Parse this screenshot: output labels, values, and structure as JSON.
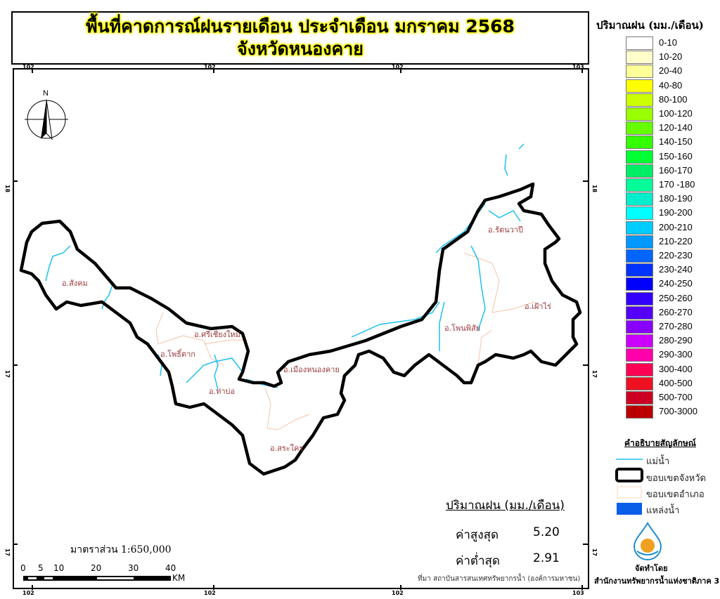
{
  "title": {
    "line1": "พื้นที่คาดการณ์ฝนรายเดือน ประจำเดือน มกราคม 2568",
    "line2": "จังหวัดหนองคาย"
  },
  "grid_labels": {
    "top": [
      "102",
      "102",
      "102",
      "103"
    ],
    "bottom": [
      "102",
      "102",
      "102",
      "103"
    ],
    "left": [
      "18",
      "17",
      "17"
    ],
    "right": [
      "18",
      "17",
      "17"
    ]
  },
  "north_arrow": {
    "label": "N"
  },
  "districts": [
    "อ.สังคม",
    "อ.ศรีเชียงใหม่",
    "อ.โพธิ์ตาก",
    "อ.ท่าบ่อ",
    "อ.เมืองหนองคาย",
    "อ.สระใคร",
    "อ.โพนพิสัย",
    "อ.รัตนวาปี",
    "อ.เฝ้าไร่"
  ],
  "rain_legend": {
    "title": "ปริมาณฝน (มม./เดือน)",
    "classes": [
      {
        "label": "0-10",
        "color": "#ffffff"
      },
      {
        "label": "10-20",
        "color": "#ffffcc"
      },
      {
        "label": "20-40",
        "color": "#ffff99"
      },
      {
        "label": "40-80",
        "color": "#ffff00"
      },
      {
        "label": "80-100",
        "color": "#ccff00"
      },
      {
        "label": "100-120",
        "color": "#99ff00"
      },
      {
        "label": "120-140",
        "color": "#66ff00"
      },
      {
        "label": "140-150",
        "color": "#33ff00"
      },
      {
        "label": "150-160",
        "color": "#00ff33"
      },
      {
        "label": "160-170",
        "color": "#00ee66"
      },
      {
        "label": "170 -180",
        "color": "#00ff99"
      },
      {
        "label": "180-190",
        "color": "#00eecc"
      },
      {
        "label": "190-200",
        "color": "#00ffff"
      },
      {
        "label": "200-210",
        "color": "#00ccff"
      },
      {
        "label": "210-220",
        "color": "#0099ff"
      },
      {
        "label": "220-230",
        "color": "#0066ff"
      },
      {
        "label": "230-240",
        "color": "#0033ff"
      },
      {
        "label": "240-250",
        "color": "#0000ff"
      },
      {
        "label": "250-260",
        "color": "#3300ff"
      },
      {
        "label": "260-270",
        "color": "#5500ff"
      },
      {
        "label": "270-280",
        "color": "#8800ff"
      },
      {
        "label": "280-290",
        "color": "#cc00ff"
      },
      {
        "label": "290-300",
        "color": "#ff00aa"
      },
      {
        "label": "300-400",
        "color": "#ff0055"
      },
      {
        "label": "400-500",
        "color": "#ee1122"
      },
      {
        "label": "500-700",
        "color": "#cc0022"
      },
      {
        "label": "700-3000",
        "color": "#bb0000"
      }
    ]
  },
  "symbol_legend": {
    "title": "คำอธิบายสัญลักษณ์",
    "river": "แม่น้ำ",
    "province_boundary": "ขอบเขตจังหวัด",
    "district_boundary": "ขอบเขตอำเภอ",
    "water_body": "แหล่งน้ำ"
  },
  "producer": {
    "label": "จัดทำโดย",
    "name": "สำนักงานทรัพยากรน้ำแห่งชาติภาค 3"
  },
  "stats": {
    "title": "ปริมาณฝน (มม./เดือน)",
    "max_label": "ค่าสูงสุด",
    "max_value": "5.20",
    "min_label": "ค่าต่ำสุด",
    "min_value": "2.91"
  },
  "source": "ที่มา  สถาบันสารสนเทศทรัพยากรน้ำ (องค์การมหาชน)",
  "scale": {
    "text": "มาตราส่วน 1:650,000",
    "ticks": [
      "0",
      "5",
      "10",
      "20",
      "30",
      "40"
    ],
    "unit": "KM"
  }
}
